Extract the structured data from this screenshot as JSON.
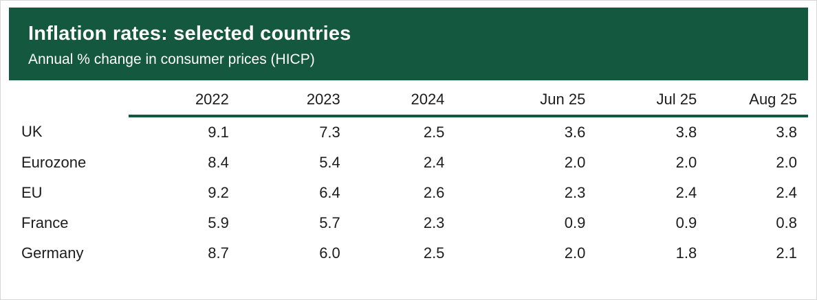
{
  "colors": {
    "header_bg": "#14593F",
    "rule": "#14593F",
    "text": "#1c1c1c",
    "page_bg": "#ffffff"
  },
  "header": {
    "title": "Inflation rates: selected countries",
    "subtitle": "Annual % change in consumer prices (HICP)"
  },
  "table": {
    "columns": [
      "",
      "2022",
      "2023",
      "2024",
      "Jun 25",
      "Jul 25",
      "Aug 25"
    ],
    "rows": [
      {
        "name": "UK",
        "values": [
          "9.1",
          "7.3",
          "2.5",
          "3.6",
          "3.8",
          "3.8"
        ]
      },
      {
        "name": "Eurozone",
        "values": [
          "8.4",
          "5.4",
          "2.4",
          "2.0",
          "2.0",
          "2.0"
        ]
      },
      {
        "name": "EU",
        "values": [
          "9.2",
          "6.4",
          "2.6",
          "2.3",
          "2.4",
          "2.4"
        ]
      },
      {
        "name": "France",
        "values": [
          "5.9",
          "5.7",
          "2.3",
          "0.9",
          "0.9",
          "0.8"
        ]
      },
      {
        "name": "Germany",
        "values": [
          "8.7",
          "6.0",
          "2.5",
          "2.0",
          "1.8",
          "2.1"
        ]
      }
    ]
  },
  "chart_data": {
    "type": "table",
    "title": "Inflation rates: selected countries",
    "subtitle": "Annual % change in consumer prices (HICP)",
    "columns": [
      "2022",
      "2023",
      "2024",
      "Jun 25",
      "Jul 25",
      "Aug 25"
    ],
    "series": [
      {
        "name": "UK",
        "values": [
          9.1,
          7.3,
          2.5,
          3.6,
          3.8,
          3.8
        ]
      },
      {
        "name": "Eurozone",
        "values": [
          8.4,
          5.4,
          2.4,
          2.0,
          2.0,
          2.0
        ]
      },
      {
        "name": "EU",
        "values": [
          9.2,
          6.4,
          2.6,
          2.3,
          2.4,
          2.4
        ]
      },
      {
        "name": "France",
        "values": [
          5.9,
          5.7,
          2.3,
          0.9,
          0.9,
          0.8
        ]
      },
      {
        "name": "Germany",
        "values": [
          8.7,
          6.0,
          2.5,
          2.0,
          1.8,
          2.1
        ]
      }
    ]
  }
}
